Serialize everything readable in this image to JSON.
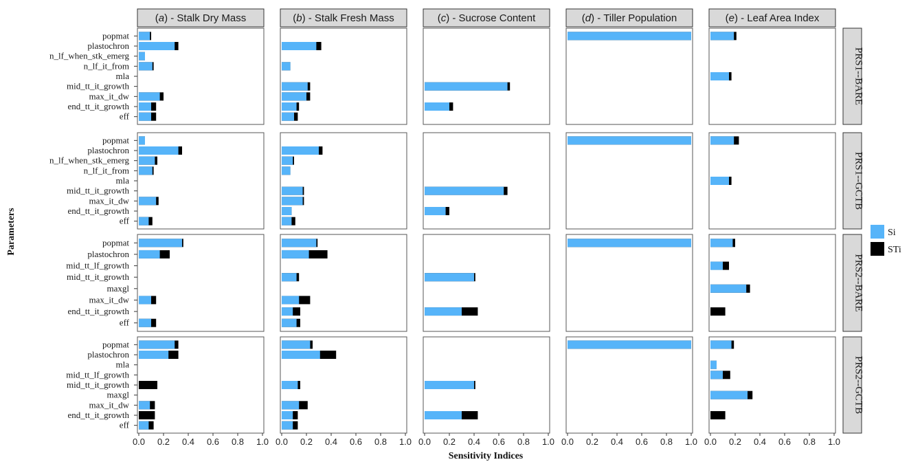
{
  "chart_data": {
    "type": "bar",
    "orientation": "horizontal",
    "layout": "faceted grid (4 rows x 5 columns)",
    "xlabel": "Sensitivity Indices",
    "ylabel": "Parameters",
    "xlim": [
      0,
      1
    ],
    "xticks": [
      "0.0",
      "0.2",
      "0.4",
      "0.6",
      "0.8",
      "1.0"
    ],
    "grid": false,
    "legend": {
      "placement": "right",
      "entries": [
        {
          "key": "si",
          "label": "Si",
          "color": "#56B4F9"
        },
        {
          "key": "sti",
          "label": "STi",
          "color": "#000000"
        }
      ]
    },
    "columns": [
      {
        "id": "a",
        "prefix": "(",
        "letter": "a",
        "suffix": ") - Stalk Dry Mass"
      },
      {
        "id": "b",
        "prefix": "(",
        "letter": "b",
        "suffix": ") - Stalk Fresh Mass"
      },
      {
        "id": "c",
        "prefix": "(",
        "letter": "c",
        "suffix": ") - Sucrose Content"
      },
      {
        "id": "d",
        "prefix": "(",
        "letter": "d",
        "suffix": ") - Tiller Population"
      },
      {
        "id": "e",
        "prefix": "(",
        "letter": "e",
        "suffix": ") - Leaf Area Index"
      }
    ],
    "rows": [
      {
        "label": "PRS1--BARE",
        "parameters": [
          "popmat",
          "plastochron",
          "n_lf_when_stk_emerg",
          "n_lf_it_from",
          "mla",
          "mid_tt_it_growth",
          "max_it_dw",
          "end_tt_it_growth",
          "eff"
        ],
        "si": [
          [
            0.09,
            0.29,
            0.05,
            0.11,
            0,
            0,
            0.17,
            0.1,
            0.1
          ],
          [
            0,
            0.28,
            0,
            0.07,
            0,
            0.21,
            0.2,
            0.12,
            0.1
          ],
          [
            0,
            0,
            0,
            0,
            0,
            0.67,
            0,
            0.2,
            0
          ],
          [
            1.0,
            0,
            0,
            0,
            0,
            0,
            0,
            0,
            0
          ],
          [
            0.19,
            0,
            0,
            0,
            0.15,
            0,
            0,
            0,
            0
          ]
        ],
        "sti": [
          [
            0.1,
            0.32,
            0.05,
            0.12,
            0,
            0,
            0.2,
            0.14,
            0.14
          ],
          [
            0,
            0.32,
            0,
            0.07,
            0,
            0.23,
            0.23,
            0.14,
            0.13
          ],
          [
            0,
            0,
            0,
            0,
            0,
            0.69,
            0,
            0.23,
            0
          ],
          [
            1.0,
            0,
            0,
            0,
            0,
            0,
            0,
            0,
            0
          ],
          [
            0.21,
            0,
            0,
            0,
            0.17,
            0,
            0,
            0,
            0
          ]
        ]
      },
      {
        "label": "PRS1--GCTB",
        "parameters": [
          "popmat",
          "plastochron",
          "n_lf_when_stk_emerg",
          "n_lf_it_from",
          "mla",
          "mid_tt_it_growth",
          "max_it_dw",
          "end_tt_it_growth",
          "eff"
        ],
        "si": [
          [
            0.05,
            0.32,
            0.13,
            0.11,
            0,
            0,
            0.14,
            0,
            0.08
          ],
          [
            0,
            0.3,
            0.09,
            0.07,
            0,
            0.17,
            0.17,
            0.08,
            0.08
          ],
          [
            0,
            0,
            0,
            0,
            0,
            0.64,
            0,
            0.17,
            0
          ],
          [
            1.0,
            0,
            0,
            0,
            0,
            0,
            0,
            0,
            0
          ],
          [
            0.19,
            0,
            0,
            0,
            0.15,
            0,
            0,
            0,
            0
          ]
        ],
        "sti": [
          [
            0.05,
            0.35,
            0.15,
            0.12,
            0,
            0,
            0.16,
            0,
            0.11
          ],
          [
            0,
            0.33,
            0.1,
            0.07,
            0,
            0.18,
            0.18,
            0.08,
            0.11
          ],
          [
            0,
            0,
            0,
            0,
            0,
            0.67,
            0,
            0.2,
            0
          ],
          [
            1.0,
            0,
            0,
            0,
            0,
            0,
            0,
            0,
            0
          ],
          [
            0.23,
            0,
            0,
            0,
            0.17,
            0,
            0,
            0,
            0
          ]
        ]
      },
      {
        "label": "PRS2--BARE",
        "parameters": [
          "popmat",
          "plastochron",
          "mid_tt_lf_growth",
          "mid_tt_it_growth",
          "maxgl",
          "max_it_dw",
          "end_tt_it_growth",
          "eff"
        ],
        "si": [
          [
            0.35,
            0.17,
            0,
            0,
            0,
            0.1,
            0,
            0.1
          ],
          [
            0.28,
            0.22,
            0,
            0.12,
            0,
            0.14,
            0.09,
            0.12
          ],
          [
            0,
            0,
            0,
            0.4,
            0,
            0,
            0.3,
            0
          ],
          [
            1.0,
            0,
            0,
            0,
            0,
            0,
            0,
            0
          ],
          [
            0.18,
            0,
            0.1,
            0,
            0.29,
            0,
            0,
            0
          ]
        ],
        "sti": [
          [
            0.36,
            0.25,
            0,
            0,
            0,
            0.14,
            0,
            0.14
          ],
          [
            0.29,
            0.37,
            0,
            0.14,
            0,
            0.23,
            0.15,
            0.15
          ],
          [
            0,
            0,
            0,
            0.41,
            0,
            0,
            0.43,
            0
          ],
          [
            1.0,
            0,
            0,
            0,
            0,
            0,
            0,
            0
          ],
          [
            0.2,
            0,
            0.15,
            0,
            0.32,
            0,
            0.12,
            0
          ]
        ]
      },
      {
        "label": "PRS2--GCTB",
        "parameters": [
          "popmat",
          "plastochron",
          "mla",
          "mid_tt_lf_growth",
          "mid_tt_it_growth",
          "maxgl",
          "max_it_dw",
          "end_tt_it_growth",
          "eff"
        ],
        "si": [
          [
            0.29,
            0.24,
            0,
            0,
            0,
            0,
            0.09,
            0,
            0.08
          ],
          [
            0.23,
            0.31,
            0,
            0,
            0.13,
            0,
            0.14,
            0.09,
            0.09
          ],
          [
            0,
            0,
            0,
            0,
            0.4,
            0,
            0,
            0.3,
            0
          ],
          [
            1.0,
            0,
            0,
            0,
            0,
            0,
            0,
            0,
            0
          ],
          [
            0.17,
            0,
            0.05,
            0.1,
            0,
            0.3,
            0,
            0,
            0
          ]
        ],
        "sti": [
          [
            0.32,
            0.32,
            0,
            0,
            0.15,
            0,
            0.13,
            0.13,
            0.12
          ],
          [
            0.25,
            0.44,
            0,
            0,
            0.15,
            0,
            0.21,
            0.13,
            0.13
          ],
          [
            0,
            0,
            0,
            0,
            0.41,
            0,
            0,
            0.43,
            0
          ],
          [
            1.0,
            0,
            0,
            0,
            0,
            0,
            0,
            0,
            0
          ],
          [
            0.19,
            0,
            0.05,
            0.16,
            0,
            0.34,
            0,
            0.12,
            0
          ]
        ]
      }
    ]
  }
}
